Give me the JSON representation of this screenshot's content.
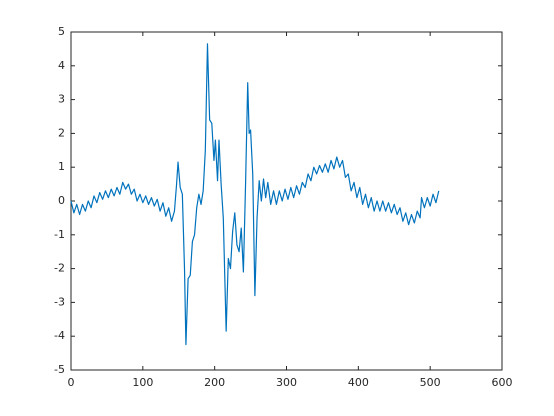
{
  "chart_data": {
    "type": "line",
    "x": [
      0,
      4,
      8,
      12,
      16,
      20,
      24,
      28,
      32,
      36,
      40,
      44,
      48,
      52,
      56,
      60,
      64,
      68,
      72,
      76,
      80,
      84,
      88,
      92,
      96,
      100,
      104,
      108,
      112,
      116,
      120,
      124,
      128,
      132,
      136,
      140,
      144,
      147,
      149,
      152,
      155,
      158,
      160,
      163,
      166,
      169,
      172,
      175,
      178,
      181,
      184,
      187,
      190,
      193,
      196,
      199,
      201,
      204,
      206,
      209,
      212,
      216,
      219,
      222,
      225,
      228,
      231,
      234,
      237,
      240,
      243,
      246,
      248,
      250,
      253,
      256,
      259,
      262,
      265,
      268,
      271,
      274,
      278,
      282,
      286,
      290,
      294,
      298,
      302,
      306,
      310,
      314,
      318,
      322,
      326,
      330,
      334,
      338,
      342,
      346,
      350,
      354,
      358,
      362,
      366,
      370,
      374,
      378,
      382,
      386,
      390,
      394,
      398,
      402,
      406,
      410,
      414,
      418,
      422,
      426,
      430,
      434,
      438,
      442,
      446,
      450,
      454,
      458,
      462,
      466,
      470,
      474,
      478,
      482,
      486,
      488,
      492,
      496,
      500,
      504,
      508,
      512
    ],
    "series": [
      {
        "color": "#0072bd",
        "values": [
          0,
          -0.35,
          -0.1,
          -0.4,
          -0.1,
          -0.3,
          0,
          -0.2,
          0.15,
          -0.05,
          0.25,
          0.05,
          0.3,
          0.1,
          0.35,
          0.15,
          0.4,
          0.2,
          0.55,
          0.35,
          0.5,
          0.2,
          0.35,
          0,
          0.2,
          -0.05,
          0.15,
          -0.1,
          0.1,
          -0.15,
          0.05,
          -0.3,
          -0.05,
          -0.45,
          -0.2,
          -0.6,
          -0.3,
          0.5,
          1.15,
          0.4,
          0.2,
          -2.0,
          -4.25,
          -2.3,
          -2.2,
          -1.2,
          -1.0,
          -0.2,
          0.2,
          -0.1,
          0.3,
          1.5,
          4.65,
          2.4,
          2.3,
          1.2,
          1.8,
          0.6,
          1.8,
          0.5,
          -0.5,
          -3.85,
          -1.7,
          -2.0,
          -0.9,
          -0.35,
          -1.3,
          -1.5,
          -0.8,
          -2.1,
          0.5,
          3.5,
          2.0,
          2.1,
          0.8,
          -2.8,
          -0.5,
          0.6,
          0,
          0.65,
          0.1,
          0.55,
          -0.1,
          0.3,
          -0.1,
          0.3,
          0,
          0.35,
          0.05,
          0.4,
          0.1,
          0.45,
          0.2,
          0.55,
          0.4,
          0.8,
          0.6,
          1.0,
          0.8,
          1.05,
          0.85,
          1.1,
          0.85,
          1.2,
          0.95,
          1.3,
          1.0,
          1.2,
          0.7,
          0.8,
          0.3,
          0.55,
          0.1,
          0.4,
          -0.1,
          0.2,
          -0.2,
          0.1,
          -0.3,
          0,
          -0.3,
          0,
          -0.3,
          -0.05,
          -0.35,
          -0.1,
          -0.4,
          -0.2,
          -0.6,
          -0.35,
          -0.7,
          -0.4,
          -0.65,
          -0.3,
          -0.5,
          0.1,
          -0.2,
          0.1,
          -0.15,
          0.2,
          -0.05,
          0.3
        ]
      }
    ],
    "xlim": [
      0,
      600
    ],
    "xticks": [
      0,
      100,
      200,
      300,
      400,
      500,
      600
    ],
    "ylim": [
      -5,
      5
    ],
    "yticks": [
      -5,
      -4,
      -3,
      -2,
      -1,
      0,
      1,
      2,
      3,
      4,
      5
    ]
  }
}
